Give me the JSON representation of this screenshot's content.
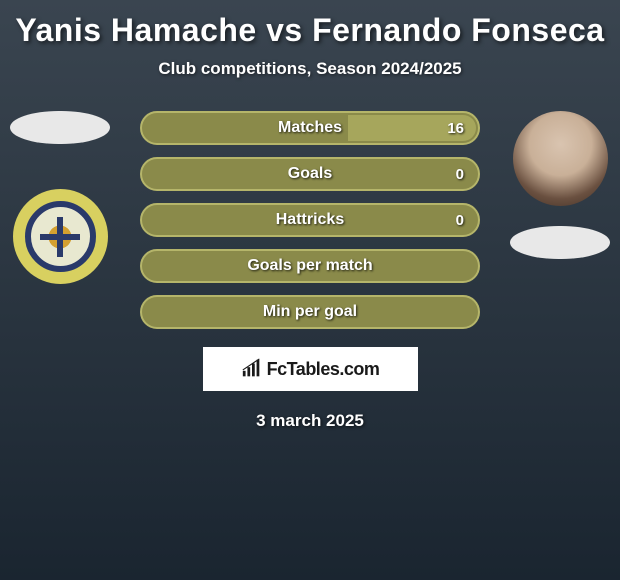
{
  "title": "Yanis Hamache vs Fernando Fonseca",
  "subtitle": "Club competitions, Season 2024/2025",
  "brand": "FcTables.com",
  "date": "3 march 2025",
  "colors": {
    "background_top": "#3a4550",
    "background_bottom": "#1a2530",
    "pill_bg": "#8a8a4a",
    "pill_border": "#b5b56a",
    "pill_fill": "#a6a65c",
    "text": "#ffffff",
    "brand_box": "#ffffff",
    "brand_text": "#1a1a1a"
  },
  "stats": [
    {
      "label": "Matches",
      "right_val": "16",
      "right_fill_pct": 38
    },
    {
      "label": "Goals",
      "right_val": "0",
      "right_fill_pct": 0
    },
    {
      "label": "Hattricks",
      "right_val": "0",
      "right_fill_pct": 0
    },
    {
      "label": "Goals per match",
      "right_val": "",
      "right_fill_pct": 0
    },
    {
      "label": "Min per goal",
      "right_val": "",
      "right_fill_pct": 0
    }
  ]
}
